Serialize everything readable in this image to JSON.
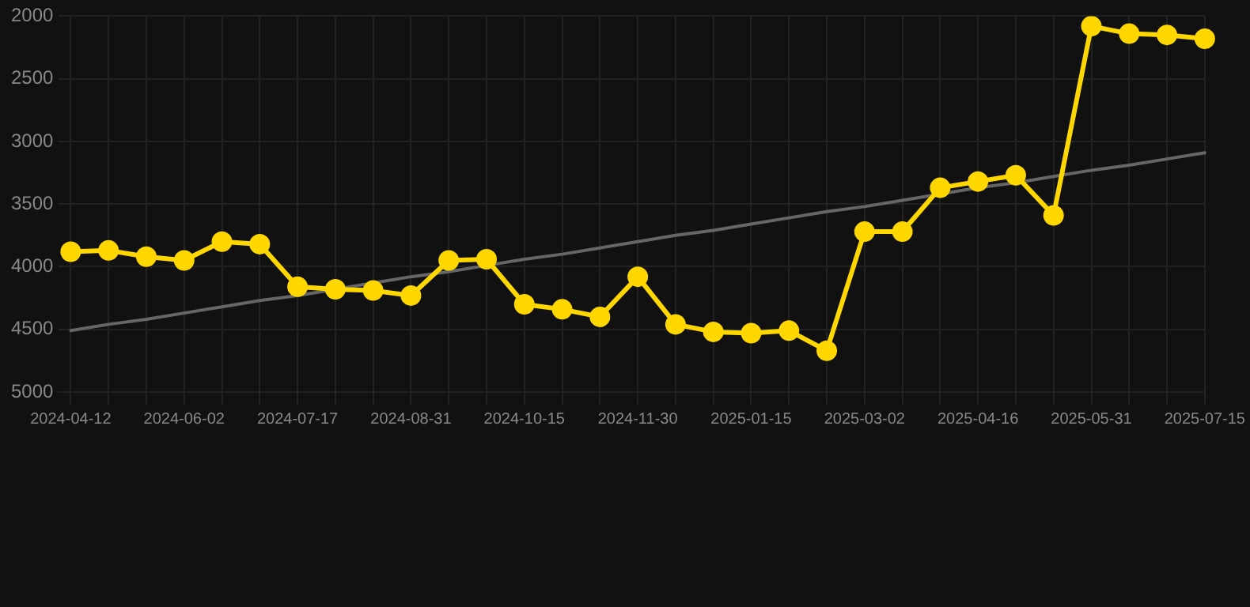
{
  "chart_data": {
    "type": "line",
    "categories": [
      "2024-04-12",
      null,
      null,
      "2024-06-02",
      null,
      null,
      "2024-07-17",
      null,
      null,
      "2024-08-31",
      null,
      null,
      "2024-10-15",
      null,
      null,
      "2024-11-30",
      null,
      null,
      "2025-01-15",
      null,
      null,
      "2025-03-02",
      null,
      null,
      "2025-04-16",
      null,
      null,
      "2025-05-31",
      null,
      null,
      "2025-07-15"
    ],
    "series": [
      {
        "color": "#ffd700",
        "marker": "circle",
        "values": [
          3880,
          3870,
          3920,
          3950,
          3800,
          3820,
          4160,
          4180,
          4190,
          4230,
          3950,
          3940,
          4300,
          4340,
          4400,
          4080,
          4460,
          4520,
          4530,
          4510,
          4670,
          3720,
          3720,
          3370,
          3320,
          3270,
          3590,
          2080,
          2140,
          2150,
          2180
        ]
      },
      {
        "type": "line",
        "color": "#666666",
        "marker": "none",
        "values": [
          4510,
          4460,
          4420,
          4370,
          4320,
          4270,
          4230,
          4180,
          4130,
          4080,
          4040,
          3990,
          3940,
          3900,
          3850,
          3800,
          3750,
          3710,
          3660,
          3610,
          3560,
          3520,
          3470,
          3420,
          3370,
          3330,
          3280,
          3230,
          3190,
          3140,
          3090
        ]
      }
    ],
    "ylim": [
      5000,
      2000
    ],
    "yticks": [
      2000,
      2500,
      3000,
      3500,
      4000,
      4500,
      5000
    ],
    "grid": true,
    "line_style": "solid"
  }
}
